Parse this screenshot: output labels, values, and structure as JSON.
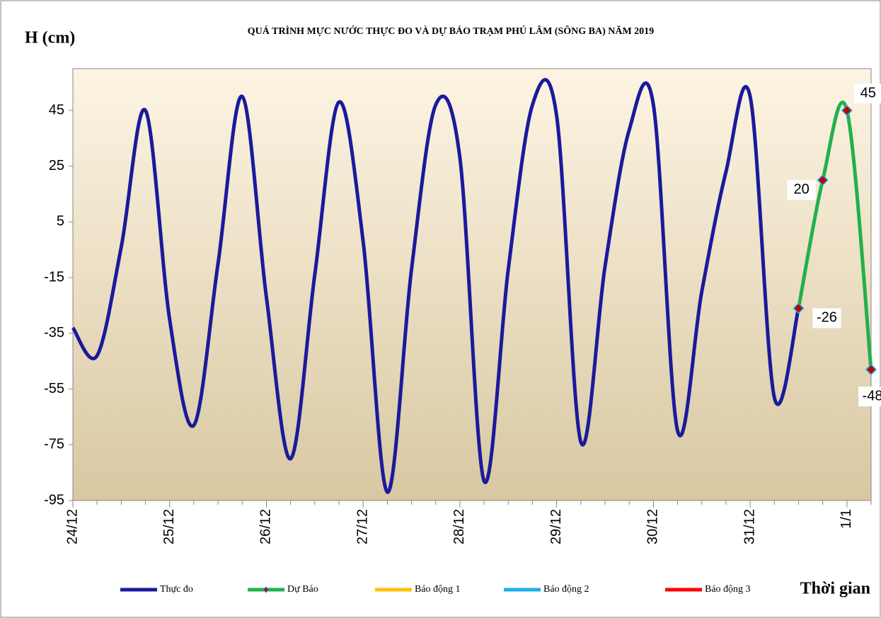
{
  "chart_data": {
    "type": "line",
    "title": "QUÁ TRÌNH MỰC NƯỚC THỰC ĐO VÀ DỰ BÁO TRẠM  PHÚ LÂM (SÔNG BA) NĂM 2019",
    "y_label": "H (cm)",
    "x_label": "Thời gian",
    "categories": [
      "24/12",
      null,
      null,
      null,
      "25/12",
      null,
      null,
      null,
      "26/12",
      null,
      null,
      null,
      "27/12",
      null,
      null,
      null,
      "28/12",
      null,
      null,
      null,
      "29/12",
      null,
      null,
      null,
      "30/12",
      null,
      null,
      null,
      "31/12",
      null,
      null,
      null,
      "1/1",
      null
    ],
    "series": [
      {
        "name": "Thực đo",
        "color": "#1a1a9c",
        "values": [
          -33,
          -43,
          -4,
          45,
          -30,
          -68,
          -10,
          50,
          -22,
          -80,
          -14,
          48,
          -2,
          -92,
          -12,
          47,
          28,
          -88,
          -12,
          47,
          43,
          -74,
          -11,
          38,
          47,
          -70,
          -20,
          23,
          50,
          -58,
          -26,
          null,
          null,
          null
        ]
      },
      {
        "name": "Dự Báo",
        "color": "#22b04b",
        "markers": true,
        "values": [
          null,
          null,
          null,
          null,
          null,
          null,
          null,
          null,
          null,
          null,
          null,
          null,
          null,
          null,
          null,
          null,
          null,
          null,
          null,
          null,
          null,
          null,
          null,
          null,
          null,
          null,
          null,
          null,
          null,
          null,
          -26,
          20,
          45,
          -48
        ]
      },
      {
        "name": "Báo động 1",
        "color": "#ffc000",
        "values": [
          null,
          null,
          null,
          null,
          null,
          null,
          null,
          null,
          null,
          null,
          null,
          null,
          null,
          null,
          null,
          null,
          null,
          null,
          null,
          null,
          null,
          null,
          null,
          null,
          null,
          null,
          null,
          null,
          null,
          null,
          null,
          null,
          null,
          null
        ]
      },
      {
        "name": "Báo động 2",
        "color": "#1ab0ee",
        "values": [
          null,
          null,
          null,
          null,
          null,
          null,
          null,
          null,
          null,
          null,
          null,
          null,
          null,
          null,
          null,
          null,
          null,
          null,
          null,
          null,
          null,
          null,
          null,
          null,
          null,
          null,
          null,
          null,
          null,
          null,
          null,
          null,
          null,
          null
        ]
      },
      {
        "name": "Báo động 3",
        "color": "#ff0000",
        "values": [
          null,
          null,
          null,
          null,
          null,
          null,
          null,
          null,
          null,
          null,
          null,
          null,
          null,
          null,
          null,
          null,
          null,
          null,
          null,
          null,
          null,
          null,
          null,
          null,
          null,
          null,
          null,
          null,
          null,
          null,
          null,
          null,
          null,
          null
        ]
      }
    ],
    "ylim": [
      -95,
      60
    ],
    "yticks": [
      -95,
      -75,
      -55,
      -35,
      -15,
      5,
      25,
      45
    ]
  }
}
